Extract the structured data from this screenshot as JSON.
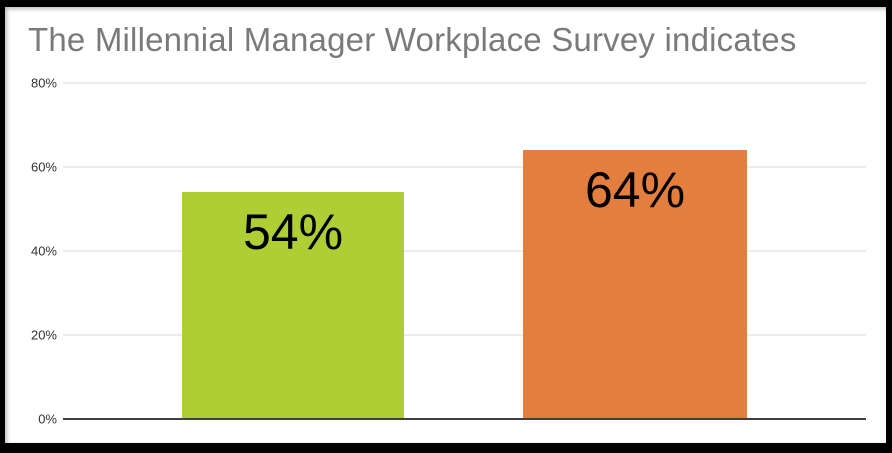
{
  "chart_data": {
    "type": "bar",
    "title": "The Millennial Manager Workplace Survey indicates",
    "categories": [
      "",
      ""
    ],
    "values": [
      54,
      64
    ],
    "labels": [
      "54%",
      "64%"
    ],
    "bar_colors": [
      "#adcf35",
      "#e47e3e"
    ],
    "xlabel": "",
    "ylabel": "",
    "ylim": [
      0,
      80
    ],
    "yticks": [
      "0%",
      "20%",
      "40%",
      "60%",
      "80%"
    ],
    "grid": true,
    "legend": false,
    "value_label_position": "inside-top"
  },
  "colors": {
    "background": "#ffffff",
    "frame_border": "#000000",
    "title_text": "#7a7a7a",
    "tick_text": "#333333",
    "gridline": "#d9d9d9",
    "axis_line": "#3f3f3f",
    "bar_label_text": "#000000"
  }
}
